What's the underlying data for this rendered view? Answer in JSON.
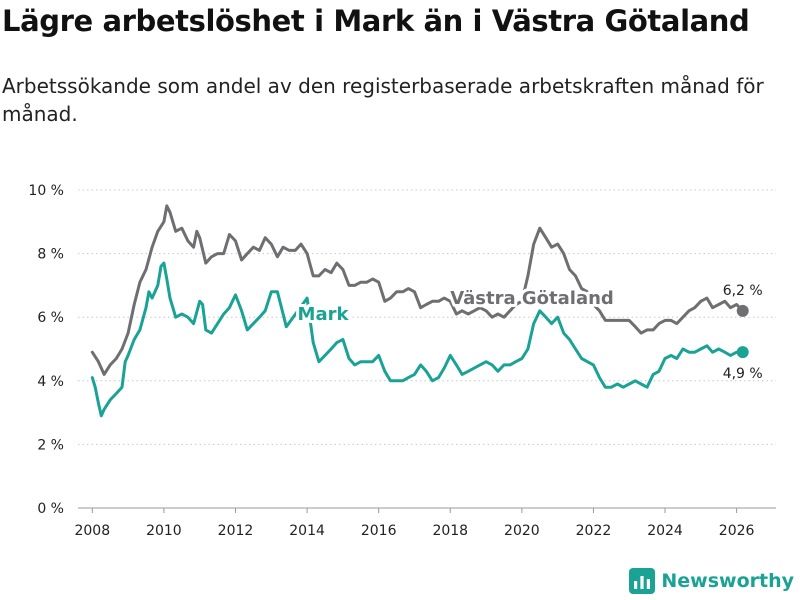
{
  "title": "Lägre arbetslöshet i Mark än i Västra Götaland",
  "subtitle": "Arbetssökande som andel av den registerbaserade arbetskraften månad för månad.",
  "brand": {
    "name": "Newsworthy",
    "color": "#1aa395"
  },
  "chart_data": {
    "type": "line",
    "title": "Lägre arbetslöshet i Mark än i Västra Götaland",
    "xlabel": "",
    "ylabel": "",
    "xlim": [
      2007.6,
      2027.1
    ],
    "ylim": [
      0,
      10
    ],
    "grid": true,
    "x_ticks": [
      2008,
      2010,
      2012,
      2014,
      2016,
      2018,
      2020,
      2022,
      2024,
      2026
    ],
    "x_tick_labels": [
      "2008",
      "2010",
      "2012",
      "2014",
      "2016",
      "2018",
      "2020",
      "2022",
      "2024",
      "2026"
    ],
    "y_ticks": [
      0,
      2,
      4,
      6,
      8,
      10
    ],
    "y_tick_labels": [
      "0 %",
      "2 %",
      "4 %",
      "6 %",
      "8 %",
      "10 %"
    ],
    "series": [
      {
        "name": "Västra Götaland",
        "label": "Västra Götaland",
        "color": "#6e6e73",
        "end_label": "6,2 %",
        "end_value": 6.2,
        "points": [
          [
            2008.0,
            4.9
          ],
          [
            2008.17,
            4.6
          ],
          [
            2008.33,
            4.2
          ],
          [
            2008.5,
            4.5
          ],
          [
            2008.67,
            4.7
          ],
          [
            2008.83,
            5.0
          ],
          [
            2009.0,
            5.5
          ],
          [
            2009.17,
            6.4
          ],
          [
            2009.33,
            7.1
          ],
          [
            2009.5,
            7.5
          ],
          [
            2009.67,
            8.2
          ],
          [
            2009.83,
            8.7
          ],
          [
            2010.0,
            9.0
          ],
          [
            2010.08,
            9.5
          ],
          [
            2010.17,
            9.3
          ],
          [
            2010.33,
            8.7
          ],
          [
            2010.5,
            8.8
          ],
          [
            2010.67,
            8.4
          ],
          [
            2010.83,
            8.2
          ],
          [
            2010.92,
            8.7
          ],
          [
            2011.0,
            8.5
          ],
          [
            2011.17,
            7.7
          ],
          [
            2011.33,
            7.9
          ],
          [
            2011.5,
            8.0
          ],
          [
            2011.67,
            8.0
          ],
          [
            2011.83,
            8.6
          ],
          [
            2012.0,
            8.4
          ],
          [
            2012.17,
            7.8
          ],
          [
            2012.33,
            8.0
          ],
          [
            2012.5,
            8.2
          ],
          [
            2012.67,
            8.1
          ],
          [
            2012.83,
            8.5
          ],
          [
            2013.0,
            8.3
          ],
          [
            2013.17,
            7.9
          ],
          [
            2013.33,
            8.2
          ],
          [
            2013.5,
            8.1
          ],
          [
            2013.67,
            8.1
          ],
          [
            2013.83,
            8.3
          ],
          [
            2014.0,
            8.0
          ],
          [
            2014.17,
            7.3
          ],
          [
            2014.33,
            7.3
          ],
          [
            2014.5,
            7.5
          ],
          [
            2014.67,
            7.4
          ],
          [
            2014.83,
            7.7
          ],
          [
            2015.0,
            7.5
          ],
          [
            2015.17,
            7.0
          ],
          [
            2015.33,
            7.0
          ],
          [
            2015.5,
            7.1
          ],
          [
            2015.67,
            7.1
          ],
          [
            2015.83,
            7.2
          ],
          [
            2016.0,
            7.1
          ],
          [
            2016.17,
            6.5
          ],
          [
            2016.33,
            6.6
          ],
          [
            2016.5,
            6.8
          ],
          [
            2016.67,
            6.8
          ],
          [
            2016.83,
            6.9
          ],
          [
            2017.0,
            6.8
          ],
          [
            2017.17,
            6.3
          ],
          [
            2017.33,
            6.4
          ],
          [
            2017.5,
            6.5
          ],
          [
            2017.67,
            6.5
          ],
          [
            2017.83,
            6.6
          ],
          [
            2018.0,
            6.5
          ],
          [
            2018.17,
            6.1
          ],
          [
            2018.33,
            6.2
          ],
          [
            2018.5,
            6.1
          ],
          [
            2018.67,
            6.2
          ],
          [
            2018.83,
            6.3
          ],
          [
            2019.0,
            6.2
          ],
          [
            2019.17,
            6.0
          ],
          [
            2019.33,
            6.1
          ],
          [
            2019.5,
            6.0
          ],
          [
            2019.67,
            6.2
          ],
          [
            2019.83,
            6.4
          ],
          [
            2020.0,
            6.5
          ],
          [
            2020.17,
            7.3
          ],
          [
            2020.33,
            8.3
          ],
          [
            2020.5,
            8.8
          ],
          [
            2020.67,
            8.5
          ],
          [
            2020.83,
            8.2
          ],
          [
            2021.0,
            8.3
          ],
          [
            2021.17,
            8.0
          ],
          [
            2021.33,
            7.5
          ],
          [
            2021.5,
            7.3
          ],
          [
            2021.67,
            6.9
          ],
          [
            2021.83,
            6.8
          ],
          [
            2022.0,
            6.4
          ],
          [
            2022.17,
            6.2
          ],
          [
            2022.33,
            5.9
          ],
          [
            2022.5,
            5.9
          ],
          [
            2022.67,
            5.9
          ],
          [
            2022.83,
            5.9
          ],
          [
            2023.0,
            5.9
          ],
          [
            2023.17,
            5.7
          ],
          [
            2023.33,
            5.5
          ],
          [
            2023.5,
            5.6
          ],
          [
            2023.67,
            5.6
          ],
          [
            2023.83,
            5.8
          ],
          [
            2024.0,
            5.9
          ],
          [
            2024.17,
            5.9
          ],
          [
            2024.33,
            5.8
          ],
          [
            2024.5,
            6.0
          ],
          [
            2024.67,
            6.2
          ],
          [
            2024.83,
            6.3
          ],
          [
            2025.0,
            6.5
          ],
          [
            2025.17,
            6.6
          ],
          [
            2025.33,
            6.3
          ],
          [
            2025.5,
            6.4
          ],
          [
            2025.67,
            6.5
          ],
          [
            2025.83,
            6.3
          ],
          [
            2026.0,
            6.4
          ],
          [
            2026.17,
            6.2
          ]
        ]
      },
      {
        "name": "Mark",
        "label": "Mark",
        "color": "#1aa395",
        "end_label": "4,9 %",
        "end_value": 4.9,
        "points": [
          [
            2008.0,
            4.1
          ],
          [
            2008.08,
            3.8
          ],
          [
            2008.17,
            3.3
          ],
          [
            2008.25,
            2.9
          ],
          [
            2008.33,
            3.1
          ],
          [
            2008.5,
            3.4
          ],
          [
            2008.67,
            3.6
          ],
          [
            2008.83,
            3.8
          ],
          [
            2008.92,
            4.6
          ],
          [
            2009.0,
            4.8
          ],
          [
            2009.17,
            5.3
          ],
          [
            2009.33,
            5.6
          ],
          [
            2009.5,
            6.3
          ],
          [
            2009.58,
            6.8
          ],
          [
            2009.67,
            6.6
          ],
          [
            2009.83,
            7.0
          ],
          [
            2009.92,
            7.6
          ],
          [
            2010.0,
            7.7
          ],
          [
            2010.08,
            7.2
          ],
          [
            2010.17,
            6.6
          ],
          [
            2010.33,
            6.0
          ],
          [
            2010.5,
            6.1
          ],
          [
            2010.67,
            6.0
          ],
          [
            2010.83,
            5.8
          ],
          [
            2011.0,
            6.5
          ],
          [
            2011.08,
            6.4
          ],
          [
            2011.17,
            5.6
          ],
          [
            2011.33,
            5.5
          ],
          [
            2011.5,
            5.8
          ],
          [
            2011.67,
            6.1
          ],
          [
            2011.83,
            6.3
          ],
          [
            2012.0,
            6.7
          ],
          [
            2012.17,
            6.2
          ],
          [
            2012.33,
            5.6
          ],
          [
            2012.5,
            5.8
          ],
          [
            2012.67,
            6.0
          ],
          [
            2012.83,
            6.2
          ],
          [
            2013.0,
            6.8
          ],
          [
            2013.17,
            6.8
          ],
          [
            2013.33,
            6.1
          ],
          [
            2013.42,
            5.7
          ],
          [
            2014.0,
            6.6
          ],
          [
            2014.17,
            5.2
          ],
          [
            2014.33,
            4.6
          ],
          [
            2014.5,
            4.8
          ],
          [
            2014.67,
            5.0
          ],
          [
            2014.83,
            5.2
          ],
          [
            2015.0,
            5.3
          ],
          [
            2015.17,
            4.7
          ],
          [
            2015.33,
            4.5
          ],
          [
            2015.5,
            4.6
          ],
          [
            2015.67,
            4.6
          ],
          [
            2015.83,
            4.6
          ],
          [
            2016.0,
            4.8
          ],
          [
            2016.17,
            4.3
          ],
          [
            2016.33,
            4.0
          ],
          [
            2016.5,
            4.0
          ],
          [
            2016.67,
            4.0
          ],
          [
            2016.83,
            4.1
          ],
          [
            2017.0,
            4.2
          ],
          [
            2017.17,
            4.5
          ],
          [
            2017.33,
            4.3
          ],
          [
            2017.5,
            4.0
          ],
          [
            2017.67,
            4.1
          ],
          [
            2017.83,
            4.4
          ],
          [
            2018.0,
            4.8
          ],
          [
            2018.17,
            4.5
          ],
          [
            2018.33,
            4.2
          ],
          [
            2018.5,
            4.3
          ],
          [
            2018.67,
            4.4
          ],
          [
            2018.83,
            4.5
          ],
          [
            2019.0,
            4.6
          ],
          [
            2019.17,
            4.5
          ],
          [
            2019.33,
            4.3
          ],
          [
            2019.5,
            4.5
          ],
          [
            2019.67,
            4.5
          ],
          [
            2019.83,
            4.6
          ],
          [
            2020.0,
            4.7
          ],
          [
            2020.17,
            5.0
          ],
          [
            2020.33,
            5.8
          ],
          [
            2020.5,
            6.2
          ],
          [
            2020.67,
            6.0
          ],
          [
            2020.83,
            5.8
          ],
          [
            2021.0,
            6.0
          ],
          [
            2021.17,
            5.5
          ],
          [
            2021.33,
            5.3
          ],
          [
            2021.5,
            5.0
          ],
          [
            2021.67,
            4.7
          ],
          [
            2021.83,
            4.6
          ],
          [
            2022.0,
            4.5
          ],
          [
            2022.17,
            4.1
          ],
          [
            2022.33,
            3.8
          ],
          [
            2022.5,
            3.8
          ],
          [
            2022.67,
            3.9
          ],
          [
            2022.83,
            3.8
          ],
          [
            2023.0,
            3.9
          ],
          [
            2023.17,
            4.0
          ],
          [
            2023.33,
            3.9
          ],
          [
            2023.5,
            3.8
          ],
          [
            2023.67,
            4.2
          ],
          [
            2023.83,
            4.3
          ],
          [
            2024.0,
            4.7
          ],
          [
            2024.17,
            4.8
          ],
          [
            2024.33,
            4.7
          ],
          [
            2024.5,
            5.0
          ],
          [
            2024.67,
            4.9
          ],
          [
            2024.83,
            4.9
          ],
          [
            2025.0,
            5.0
          ],
          [
            2025.17,
            5.1
          ],
          [
            2025.33,
            4.9
          ],
          [
            2025.5,
            5.0
          ],
          [
            2025.67,
            4.9
          ],
          [
            2025.83,
            4.8
          ],
          [
            2026.0,
            4.9
          ],
          [
            2026.17,
            4.9
          ]
        ]
      }
    ]
  }
}
